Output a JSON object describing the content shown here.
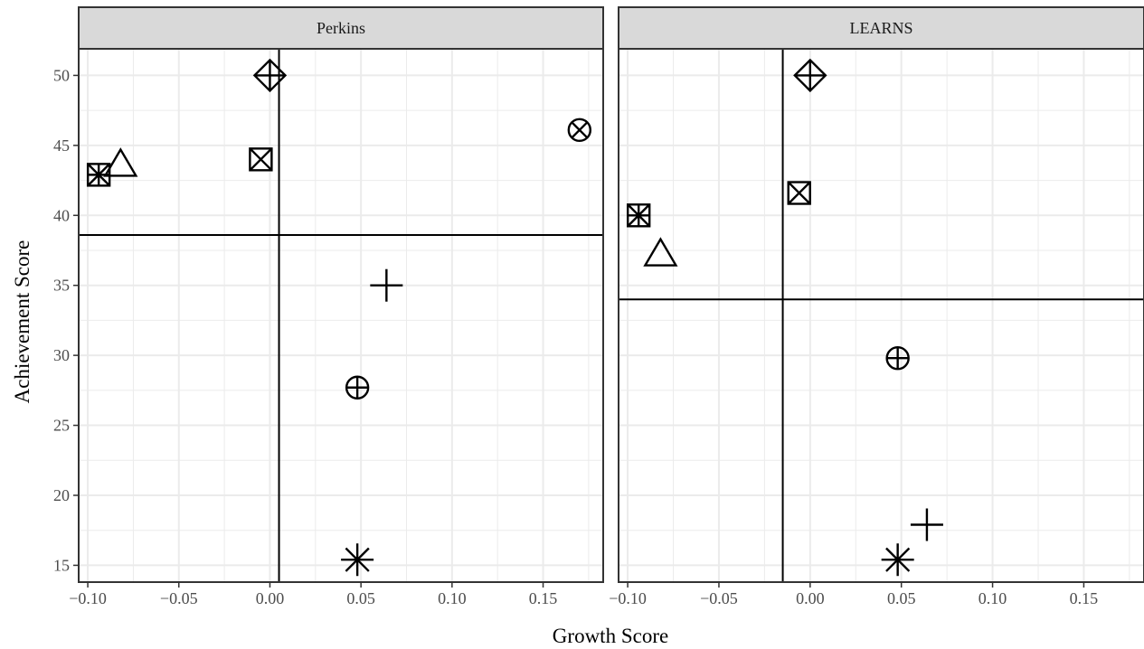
{
  "chart_data": {
    "type": "scatter",
    "xlabel": "Growth Score",
    "ylabel": "Achievement Score",
    "xlim": [
      -0.105,
      0.183
    ],
    "ylim": [
      13.8,
      51.9
    ],
    "x_ticks": [
      -0.1,
      -0.05,
      0.0,
      0.05,
      0.1,
      0.15
    ],
    "x_tick_labels": [
      "−0.10",
      "−0.05",
      "0.00",
      "0.05",
      "0.10",
      "0.15"
    ],
    "y_ticks": [
      15,
      20,
      25,
      30,
      35,
      40,
      45,
      50
    ],
    "y_tick_labels": [
      "15",
      "20",
      "25",
      "30",
      "35",
      "40",
      "45",
      "50"
    ],
    "grid": true,
    "legend": "none",
    "panels": [
      {
        "label": "Perkins",
        "vline_x": 0.005,
        "hline_y": 38.6,
        "points": [
          {
            "x": 0.0,
            "y": 50.0,
            "shape": "diamond-plus"
          },
          {
            "x": 0.17,
            "y": 46.1,
            "shape": "circle-cross"
          },
          {
            "x": -0.005,
            "y": 44.0,
            "shape": "square-cross"
          },
          {
            "x": -0.082,
            "y": 43.6,
            "shape": "triangle"
          },
          {
            "x": -0.094,
            "y": 42.9,
            "shape": "square-asterisk"
          },
          {
            "x": 0.064,
            "y": 35.0,
            "shape": "plus"
          },
          {
            "x": 0.048,
            "y": 27.7,
            "shape": "circle-plus"
          },
          {
            "x": 0.048,
            "y": 15.4,
            "shape": "asterisk"
          }
        ]
      },
      {
        "label": "LEARNS",
        "vline_x": -0.015,
        "hline_y": 34.0,
        "points": [
          {
            "x": 0.0,
            "y": 50.0,
            "shape": "diamond-plus"
          },
          {
            "x": -0.006,
            "y": 41.6,
            "shape": "square-cross"
          },
          {
            "x": -0.094,
            "y": 40.0,
            "shape": "square-asterisk"
          },
          {
            "x": -0.082,
            "y": 37.2,
            "shape": "triangle"
          },
          {
            "x": 0.048,
            "y": 29.8,
            "shape": "circle-plus"
          },
          {
            "x": 0.064,
            "y": 17.9,
            "shape": "plus"
          },
          {
            "x": 0.048,
            "y": 15.4,
            "shape": "asterisk"
          }
        ]
      }
    ]
  }
}
